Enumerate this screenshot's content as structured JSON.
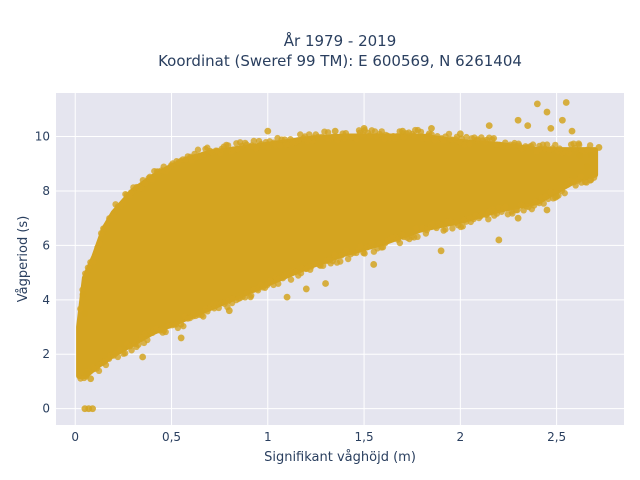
{
  "chart_data": {
    "type": "scatter",
    "title_line1": "År 1979 - 2019",
    "title_line2": "Koordinat (Sweref 99 TM): E 600569, N 6261404",
    "xlabel": "Signifikant våghöjd (m)",
    "ylabel": "Vågperiod (s)",
    "xlim": [
      -0.1,
      2.85
    ],
    "ylim": [
      -0.6,
      11.6
    ],
    "xticks": [
      0,
      0.5,
      1,
      1.5,
      2,
      2.5
    ],
    "xtick_labels": [
      "0",
      "0,5",
      "1",
      "1,5",
      "2",
      "2,5"
    ],
    "yticks": [
      0,
      2,
      4,
      6,
      8,
      10
    ],
    "ytick_labels": [
      "0",
      "2",
      "4",
      "6",
      "8",
      "10"
    ],
    "grid": true,
    "series": [
      {
        "marker_color": "#D4A420",
        "band_upper": [
          [
            0.02,
            3.0
          ],
          [
            0.05,
            4.8
          ],
          [
            0.1,
            5.6
          ],
          [
            0.15,
            6.6
          ],
          [
            0.2,
            7.2
          ],
          [
            0.3,
            8.0
          ],
          [
            0.4,
            8.5
          ],
          [
            0.5,
            8.9
          ],
          [
            0.6,
            9.2
          ],
          [
            0.7,
            9.4
          ],
          [
            0.8,
            9.5
          ],
          [
            1.0,
            9.7
          ],
          [
            1.2,
            9.9
          ],
          [
            1.4,
            10.0
          ],
          [
            1.6,
            10.0
          ],
          [
            1.8,
            10.0
          ],
          [
            2.0,
            9.8
          ],
          [
            2.2,
            9.7
          ],
          [
            2.4,
            9.5
          ],
          [
            2.6,
            9.5
          ],
          [
            2.7,
            9.5
          ]
        ],
        "band_lower": [
          [
            2.7,
            8.6
          ],
          [
            2.6,
            8.4
          ],
          [
            2.5,
            8.0
          ],
          [
            2.4,
            7.6
          ],
          [
            2.2,
            7.3
          ],
          [
            2.0,
            6.9
          ],
          [
            1.8,
            6.6
          ],
          [
            1.6,
            6.1
          ],
          [
            1.4,
            5.7
          ],
          [
            1.2,
            5.2
          ],
          [
            1.0,
            4.6
          ],
          [
            0.8,
            4.0
          ],
          [
            0.6,
            3.4
          ],
          [
            0.4,
            2.8
          ],
          [
            0.3,
            2.4
          ],
          [
            0.2,
            2.0
          ],
          [
            0.1,
            1.5
          ],
          [
            0.05,
            1.2
          ],
          [
            0.02,
            1.2
          ]
        ],
        "scattered_points": [
          {
            "x": 0.05,
            "y": 0.0
          },
          {
            "x": 0.07,
            "y": 0.0
          },
          {
            "x": 0.09,
            "y": 0.0
          },
          {
            "x": 0.08,
            "y": 1.1
          },
          {
            "x": 0.06,
            "y": 1.3
          },
          {
            "x": 1.0,
            "y": 10.2
          },
          {
            "x": 1.35,
            "y": 10.2
          },
          {
            "x": 1.5,
            "y": 10.3
          },
          {
            "x": 1.7,
            "y": 10.2
          },
          {
            "x": 1.85,
            "y": 10.3
          },
          {
            "x": 2.0,
            "y": 10.1
          },
          {
            "x": 2.15,
            "y": 10.4
          },
          {
            "x": 2.3,
            "y": 10.6
          },
          {
            "x": 2.35,
            "y": 10.4
          },
          {
            "x": 2.4,
            "y": 11.2
          },
          {
            "x": 2.45,
            "y": 10.9
          },
          {
            "x": 2.47,
            "y": 10.3
          },
          {
            "x": 2.55,
            "y": 11.25
          },
          {
            "x": 2.53,
            "y": 10.6
          },
          {
            "x": 2.58,
            "y": 10.2
          },
          {
            "x": 2.62,
            "y": 9.3
          },
          {
            "x": 2.68,
            "y": 9.3
          },
          {
            "x": 2.72,
            "y": 9.6
          },
          {
            "x": 2.66,
            "y": 8.9
          },
          {
            "x": 2.2,
            "y": 6.2
          },
          {
            "x": 1.9,
            "y": 5.8
          },
          {
            "x": 1.55,
            "y": 5.3
          },
          {
            "x": 1.3,
            "y": 4.6
          },
          {
            "x": 1.2,
            "y": 4.4
          },
          {
            "x": 1.1,
            "y": 4.1
          },
          {
            "x": 2.3,
            "y": 7.0
          },
          {
            "x": 2.45,
            "y": 7.3
          },
          {
            "x": 0.35,
            "y": 1.9
          },
          {
            "x": 0.55,
            "y": 2.6
          },
          {
            "x": 0.8,
            "y": 3.6
          },
          {
            "x": 2.5,
            "y": 7.8
          },
          {
            "x": 0.05,
            "y": 3.5
          },
          {
            "x": 0.04,
            "y": 4.2
          }
        ]
      }
    ]
  }
}
